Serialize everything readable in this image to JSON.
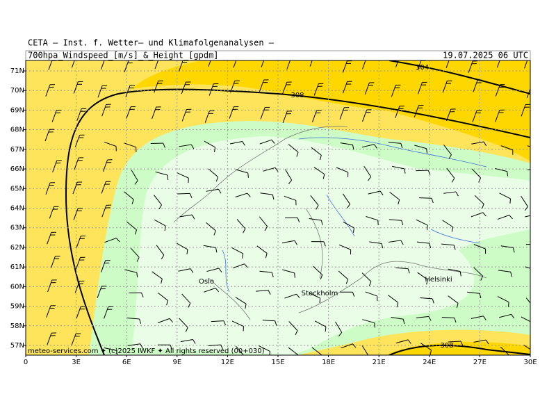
{
  "header": {
    "source": "CETA — Inst. f. Wetter— und Klimafolgenanalysen —",
    "product": "700hpa_Windspeed_[m/s]_&_Height_[gpdm]",
    "valid": "19.07.2025 06 UTC"
  },
  "map": {
    "lat_labels": [
      "71N",
      "70N",
      "69N",
      "68N",
      "67N",
      "66N",
      "65N",
      "64N",
      "63N",
      "62N",
      "61N",
      "60N",
      "59N",
      "58N",
      "57N"
    ],
    "lon_labels": [
      "0",
      "3E",
      "6E",
      "9E",
      "12E",
      "15E",
      "18E",
      "21E",
      "24E",
      "27E",
      "30E"
    ],
    "cities": [
      "Oslo",
      "Stockholm",
      "Helsinki"
    ],
    "contour_labels": [
      "304",
      "308",
      "308"
    ],
    "credit": "meteo-services.com ✦ (c)2025 IWKF ✦ All rights reserved (00+030)"
  }
}
